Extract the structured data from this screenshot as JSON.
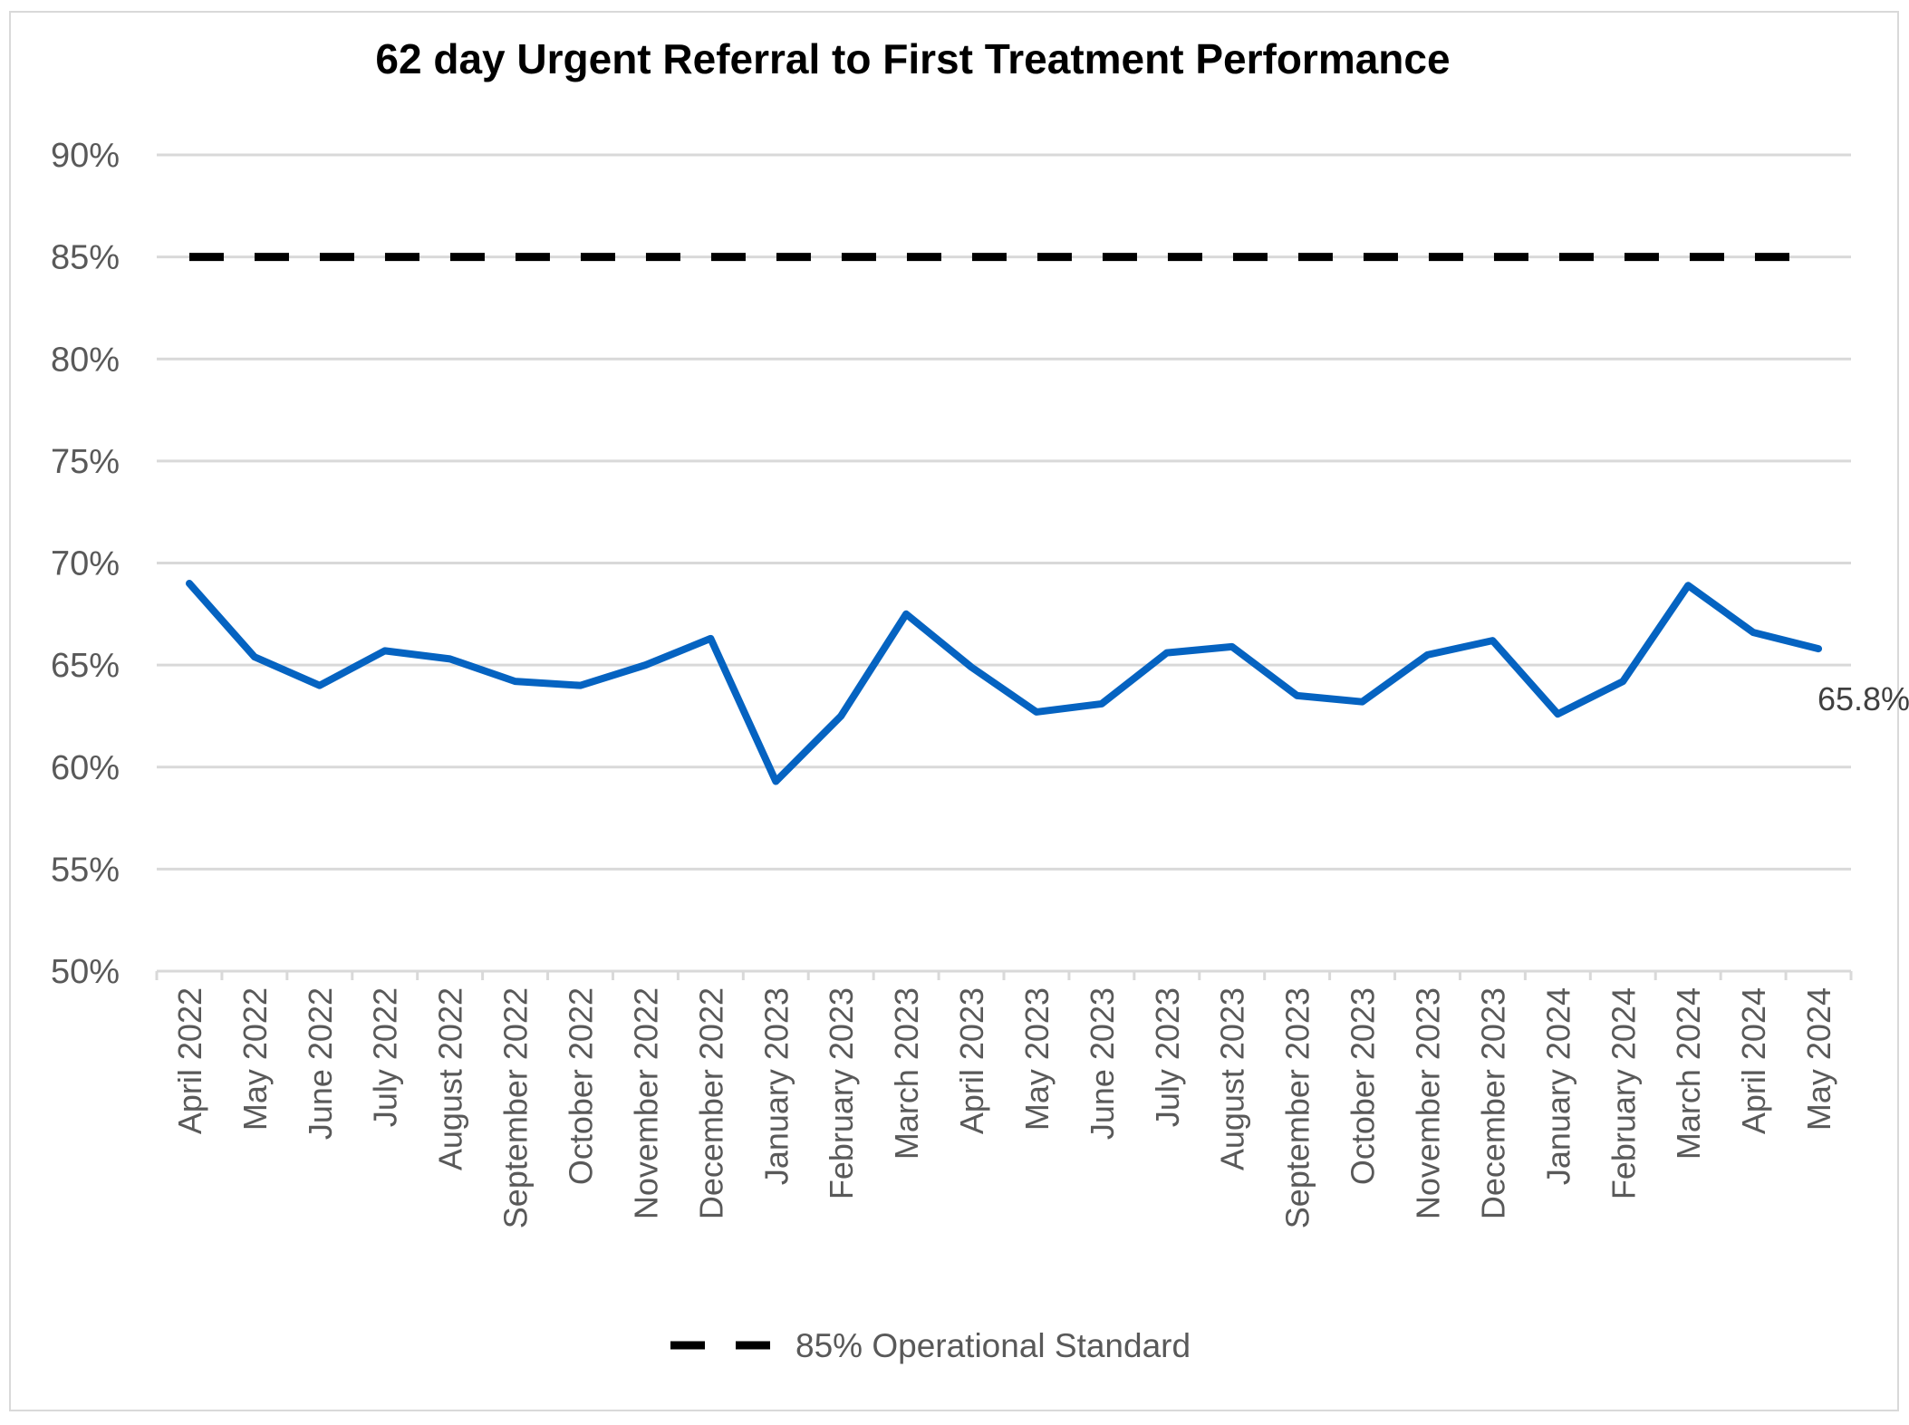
{
  "chart_data": {
    "type": "line",
    "title": "62 day Urgent Referral to First Treatment Performance",
    "xlabel": "",
    "ylabel": "",
    "ylim": [
      50,
      90
    ],
    "yticks": [
      "50%",
      "55%",
      "60%",
      "65%",
      "70%",
      "75%",
      "80%",
      "85%",
      "90%"
    ],
    "grid": true,
    "legend_position": "bottom",
    "categories": [
      "April 2022",
      "May 2022",
      "June 2022",
      "July 2022",
      "August 2022",
      "September 2022",
      "October 2022",
      "November 2022",
      "December 2022",
      "January 2023",
      "February 2023",
      "March 2023",
      "April 2023",
      "May 2023",
      "June 2023",
      "July 2023",
      "August 2023",
      "September 2023",
      "October 2023",
      "November 2023",
      "December 2023",
      "January 2024",
      "February 2024",
      "March 2024",
      "April 2024",
      "May 2024"
    ],
    "series": [
      {
        "name": "",
        "color": "#0563C1",
        "style": "solid",
        "values": [
          69.0,
          65.4,
          64.0,
          65.7,
          65.3,
          64.2,
          64.0,
          65.0,
          66.3,
          59.3,
          62.5,
          67.5,
          64.9,
          62.7,
          63.1,
          65.6,
          65.9,
          63.5,
          63.2,
          65.5,
          66.2,
          62.6,
          64.2,
          68.9,
          66.6,
          65.8
        ],
        "last_label": "65.8%"
      },
      {
        "name": "85% Operational Standard",
        "color": "#000000",
        "style": "dashed",
        "values": [
          85,
          85,
          85,
          85,
          85,
          85,
          85,
          85,
          85,
          85,
          85,
          85,
          85,
          85,
          85,
          85,
          85,
          85,
          85,
          85,
          85,
          85,
          85,
          85,
          85,
          85
        ]
      }
    ]
  }
}
